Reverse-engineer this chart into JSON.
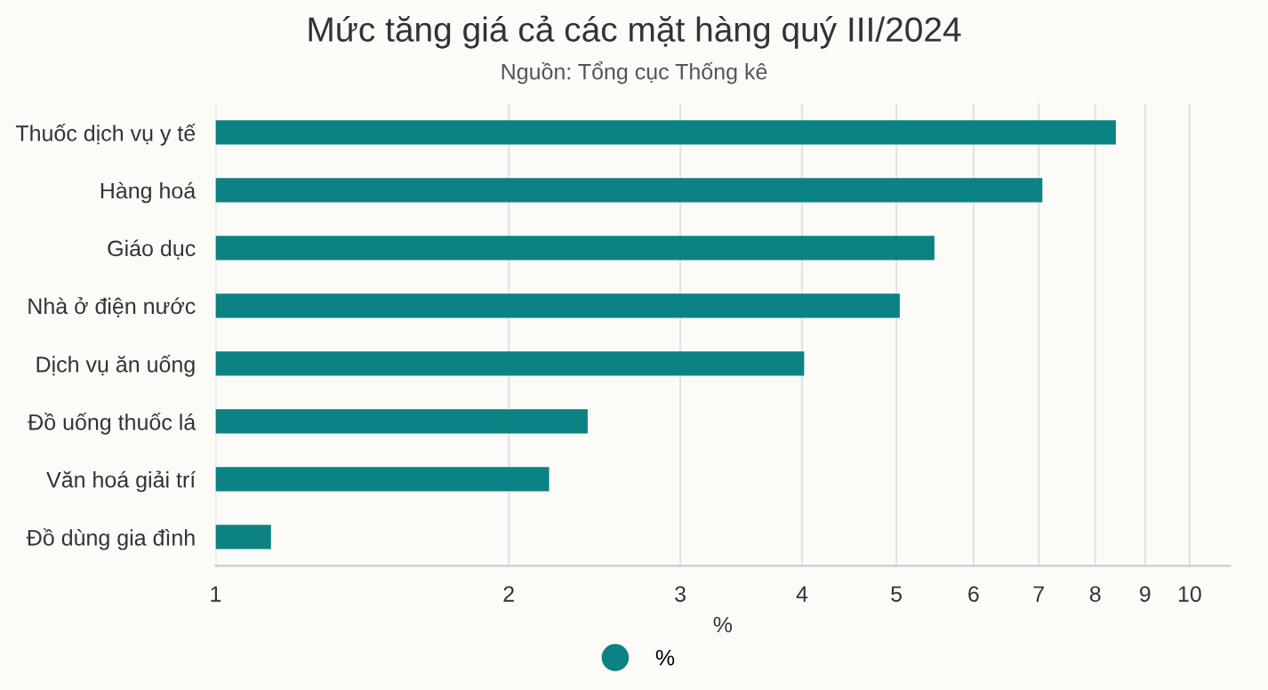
{
  "chart_data": {
    "type": "bar",
    "orientation": "horizontal",
    "title": "Mức tăng giá cả các mặt hàng quý III/2024",
    "subtitle": "Nguồn: Tổng cục Thống kê",
    "xlabel": "%",
    "categories": [
      "Thuốc dịch vụ y tế",
      "Hàng hoá",
      "Giáo dục",
      "Nhà ở điện nước",
      "Dịch vụ ăn uống",
      "Đồ uống thuốc lá",
      "Văn hoá giải trí",
      "Đồ dùng gia đình"
    ],
    "series": [
      {
        "name": "%",
        "color": "#0b8284",
        "values": [
          8.4,
          7.06,
          5.47,
          5.04,
          4.02,
          2.41,
          2.2,
          1.14
        ]
      }
    ],
    "log": "x",
    "xlim": [
      1,
      11
    ],
    "xticks": [
      1,
      2,
      3,
      4,
      5,
      6,
      7,
      8,
      9,
      10
    ],
    "grid": "x",
    "legend": "bottom"
  }
}
